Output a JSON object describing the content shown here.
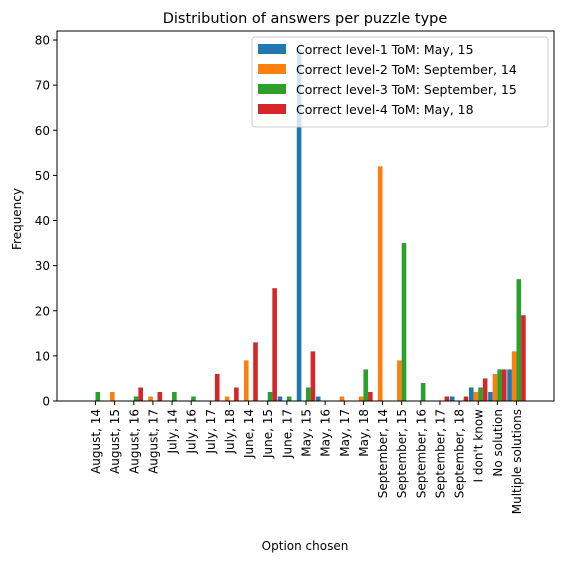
{
  "chart_data": {
    "type": "bar",
    "title": "Distribution of answers per puzzle type",
    "xlabel": "Option chosen",
    "ylabel": "Frequency",
    "ylim": [
      0,
      82
    ],
    "yticks": [
      0,
      10,
      20,
      30,
      40,
      50,
      60,
      70,
      80
    ],
    "legend_position": "top-right",
    "categories": [
      "August, 14",
      "August, 15",
      "August, 16",
      "August, 17",
      "July, 14",
      "July, 16",
      "July, 17",
      "July, 18",
      "June, 14",
      "June, 15",
      "June, 17",
      "May, 15",
      "May, 16",
      "May, 17",
      "May, 18",
      "September, 14",
      "September, 15",
      "September, 16",
      "September, 17",
      "September, 18",
      "I don't know",
      "No solution",
      "Multiple solutions"
    ],
    "series": [
      {
        "name": "Correct level-1 ToM: May, 15",
        "color": "#1f77b4",
        "values": [
          0,
          0,
          0,
          0,
          0,
          0,
          0,
          0,
          0,
          0,
          1,
          78,
          1,
          0,
          0,
          0,
          0,
          0,
          0,
          1,
          3,
          2,
          7
        ]
      },
      {
        "name": "Correct level-2 ToM: September, 14",
        "color": "#ff7f0e",
        "values": [
          0,
          2,
          0,
          1,
          0,
          0,
          0,
          1,
          9,
          0,
          0,
          0,
          0,
          1,
          1,
          52,
          9,
          0,
          0,
          0,
          2,
          6,
          11
        ]
      },
      {
        "name": "Correct level-3 ToM: September, 15",
        "color": "#2ca02c",
        "values": [
          2,
          0,
          1,
          0,
          2,
          1,
          0,
          0,
          0,
          2,
          1,
          3,
          0,
          0,
          7,
          0,
          35,
          4,
          0,
          0,
          3,
          7,
          27
        ]
      },
      {
        "name": "Correct level-4 ToM: May, 18",
        "color": "#d62728",
        "values": [
          0,
          0,
          3,
          2,
          0,
          0,
          6,
          3,
          13,
          25,
          0,
          11,
          0,
          0,
          2,
          0,
          0,
          0,
          1,
          1,
          5,
          7,
          19
        ]
      }
    ]
  }
}
